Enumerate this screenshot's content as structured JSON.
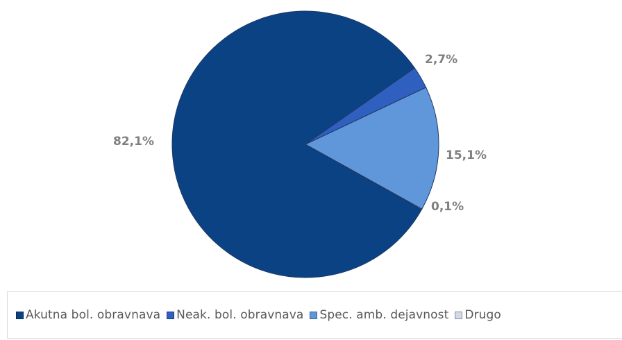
{
  "chart_data": {
    "type": "pie",
    "start_angle_deg": -35,
    "direction": "clockwise",
    "slices": [
      {
        "name": "Akutna bol. obravnava",
        "value": 82.1,
        "label": "82,1%",
        "color": "#0b4283"
      },
      {
        "name": "Neak. bol. obravnava",
        "value": 2.7,
        "label": "2,7%",
        "color": "#2f5fbf"
      },
      {
        "name": "Spec. amb. dejavnost",
        "value": 15.1,
        "label": "15,1%",
        "color": "#6097da"
      },
      {
        "name": "Drugo",
        "value": 0.1,
        "label": "0,1%",
        "color": "#d2d9e8"
      }
    ],
    "legend_position": "bottom"
  }
}
